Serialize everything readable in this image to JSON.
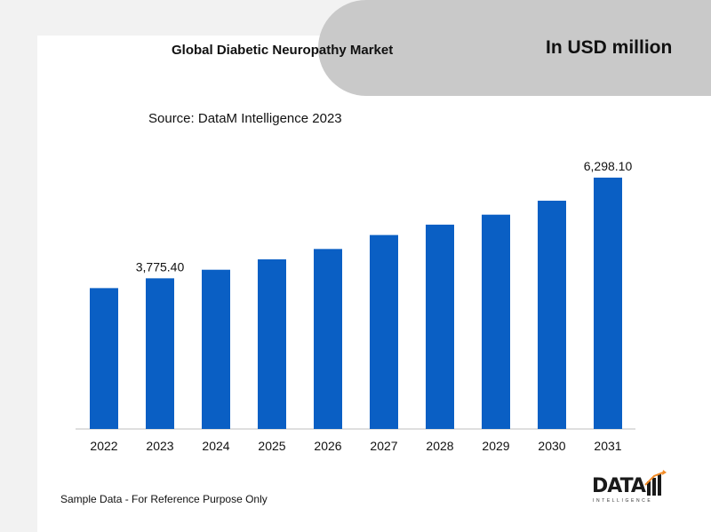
{
  "header": {
    "title": "Global Diabetic Neuropathy Market",
    "unit": "In USD million"
  },
  "source": "Source: DataM Intelligence 2023",
  "footer": "Sample Data - For Reference Purpose Only",
  "logo": {
    "text": "DATA",
    "sub": "INTELLIGENCE"
  },
  "colors": {
    "bar": "#0a5fc4",
    "accent_orange": "#f28c28",
    "pill": "#c9c9c9"
  },
  "chart_data": {
    "type": "bar",
    "categories": [
      "2022",
      "2023",
      "2024",
      "2025",
      "2026",
      "2027",
      "2028",
      "2029",
      "2030",
      "2031"
    ],
    "values": [
      3530,
      3775.4,
      3990,
      4250,
      4510,
      4860,
      5120,
      5370,
      5720,
      6298.1
    ],
    "data_labels": [
      {
        "index": 1,
        "text": "3,775.40"
      },
      {
        "index": 9,
        "text": "6,298.10"
      }
    ],
    "title": "Global Diabetic Neuropathy Market",
    "ylabel": "",
    "xlabel": "",
    "ylim": [
      0,
      6298.1
    ],
    "grid": false,
    "legend": "none"
  }
}
